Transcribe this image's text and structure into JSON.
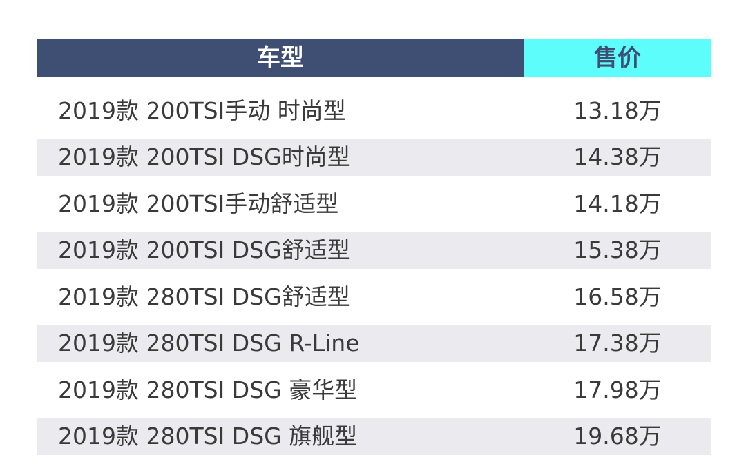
{
  "header": {
    "model_label": "车型",
    "price_label": "售价"
  },
  "rows": [
    {
      "model": "2019款 200TSI手动 时尚型",
      "price": "13.18万"
    },
    {
      "model": "2019款 200TSI DSG时尚型",
      "price": "14.38万"
    },
    {
      "model": "2019款 200TSI手动舒适型",
      "price": "14.18万"
    },
    {
      "model": "2019款 200TSI DSG舒适型",
      "price": "15.38万"
    },
    {
      "model": "2019款 280TSI DSG舒适型",
      "price": "16.58万"
    },
    {
      "model": "2019款 280TSI DSG R-Line",
      "price": "17.38万"
    },
    {
      "model": "2019款 280TSI DSG 豪华型",
      "price": "17.98万"
    },
    {
      "model": "2019款 280TSI DSG 旗舰型",
      "price": "19.68万"
    }
  ],
  "colors": {
    "header_model_bg": "#3f4f73",
    "header_price_bg": "#5dfdfc",
    "stripe": "#ebebef"
  }
}
